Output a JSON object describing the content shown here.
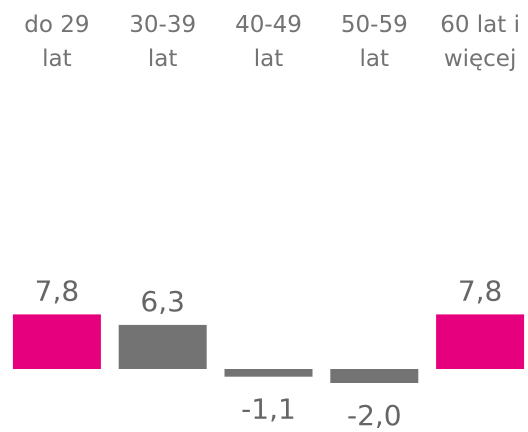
{
  "chart_data": {
    "type": "bar",
    "categories": [
      "do 29\nlat",
      "30-39\nlat",
      "40-49\nlat",
      "50-59\nlat",
      "60 lat i\nwięcej"
    ],
    "values": [
      7.8,
      6.3,
      -1.1,
      -2.0,
      7.8
    ],
    "value_labels": [
      "7,8",
      "6,3",
      "-1,1",
      "-2,0",
      "7,8"
    ],
    "colors": [
      "#e6007e",
      "#737373",
      "#737373",
      "#737373",
      "#e6007e"
    ]
  }
}
